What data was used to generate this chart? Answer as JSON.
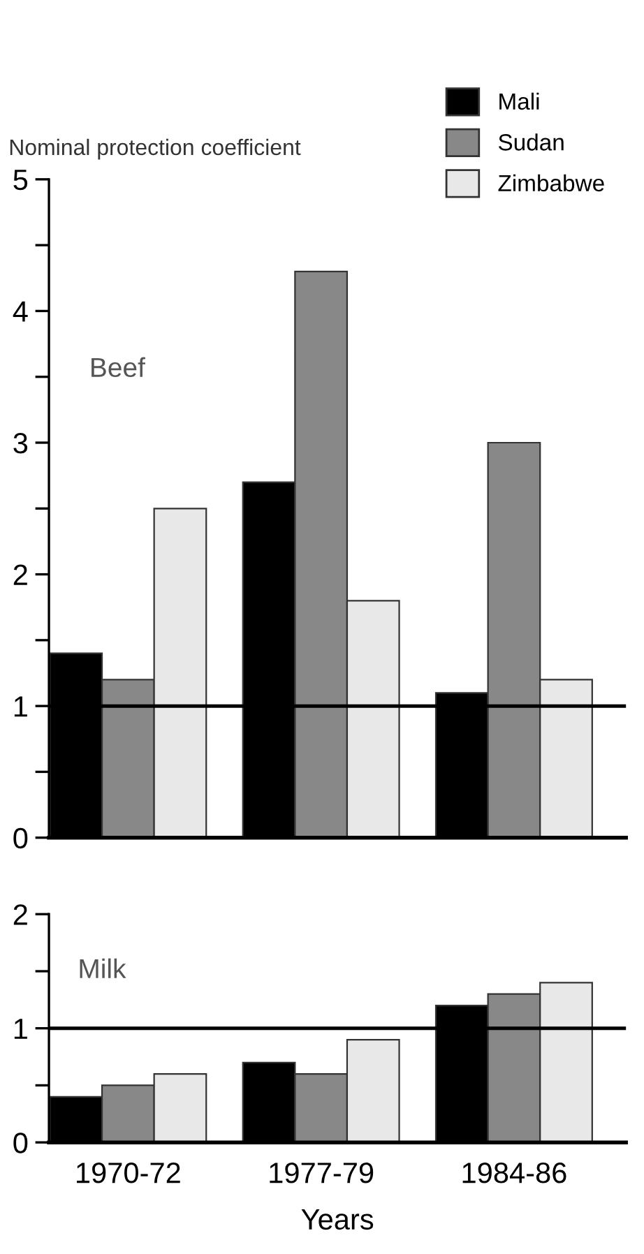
{
  "chart_data": [
    {
      "type": "bar",
      "ylabel": "Nominal protection coefficient",
      "annotations": [
        "Beef"
      ],
      "categories": [
        "1970-72",
        "1977-79",
        "1984-86"
      ],
      "series": [
        {
          "name": "Mali",
          "color": "#000000",
          "values": [
            1.4,
            2.7,
            1.1
          ]
        },
        {
          "name": "Sudan",
          "color": "#888888",
          "values": [
            1.2,
            4.3,
            3.0
          ]
        },
        {
          "name": "Zimbabwe",
          "color": "#e8e8e8",
          "values": [
            2.5,
            1.8,
            1.2
          ]
        }
      ],
      "ylim": [
        0,
        5
      ],
      "yticks": [
        0,
        {
          "value": 0.5,
          "label": null
        },
        1,
        {
          "value": 1.5,
          "label": null
        },
        2,
        {
          "value": 2.5,
          "label": null
        },
        3,
        {
          "value": 3.5,
          "label": null
        },
        4,
        {
          "value": 4.5,
          "label": null
        },
        5
      ],
      "ref_lines": [
        {
          "axis": "y",
          "value": 1,
          "color": "#000000"
        }
      ],
      "grid": false,
      "legend": "top right",
      "tick_labels": "y"
    },
    {
      "type": "bar",
      "xlabel": "Years",
      "annotations": [
        "Milk"
      ],
      "categories": [
        "1970-72",
        "1977-79",
        "1984-86"
      ],
      "series": [
        {
          "color": "#000000",
          "values": [
            0.4,
            0.7,
            1.2
          ]
        },
        {
          "color": "#888888",
          "values": [
            0.5,
            0.6,
            1.3
          ]
        },
        {
          "color": "#e8e8e8",
          "values": [
            0.6,
            0.9,
            1.4
          ]
        }
      ],
      "ylim": [
        0,
        2
      ],
      "yticks": [
        0,
        {
          "value": 0.5,
          "label": null
        },
        1,
        {
          "value": 1.5,
          "label": null
        },
        2
      ],
      "ref_lines": [
        {
          "axis": "y",
          "value": 1,
          "color": "#000000"
        }
      ],
      "grid": false,
      "legend": false
    }
  ]
}
